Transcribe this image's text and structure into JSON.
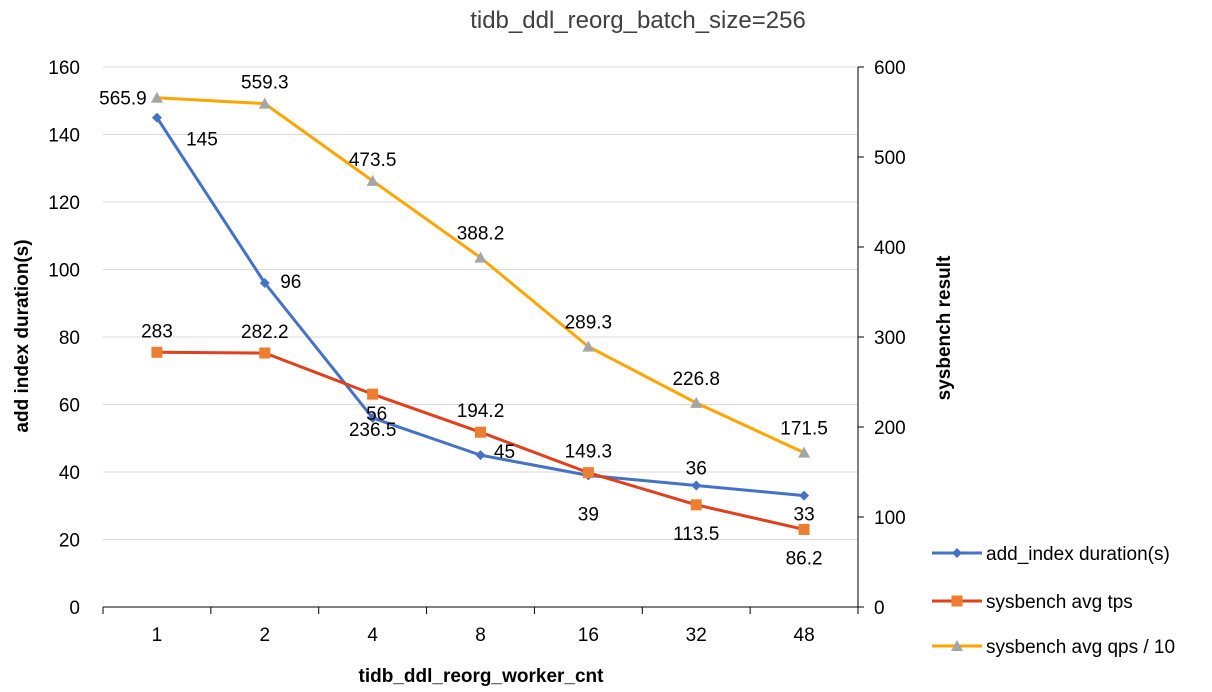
{
  "chart_data": {
    "type": "line",
    "title": "tidb_ddl_reorg_batch_size=256",
    "xlabel": "tidb_ddl_reorg_worker_cnt",
    "ylabel": "add index duration(s)",
    "y2label": "sysbench result",
    "categories": [
      "1",
      "2",
      "4",
      "8",
      "16",
      "32",
      "48"
    ],
    "ylim": [
      0,
      160
    ],
    "y_ticks": [
      "0",
      "20",
      "40",
      "60",
      "80",
      "100",
      "120",
      "140",
      "160"
    ],
    "y2lim": [
      0,
      600
    ],
    "y2_ticks": [
      "0",
      "100",
      "200",
      "300",
      "400",
      "500",
      "600"
    ],
    "grid": true,
    "legend_position": "bottom-right",
    "series": [
      {
        "name": "add_index duration(s)",
        "axis": "left",
        "color": "#4472C4",
        "marker": "diamond",
        "values": [
          145,
          96,
          56,
          45,
          39,
          36,
          33
        ],
        "labels": [
          "145",
          "96",
          "56",
          "45",
          "39",
          "36",
          "33"
        ]
      },
      {
        "name": "sysbench avg tps",
        "axis": "right",
        "color": "#ED7D31",
        "line_color": "#E0401D",
        "marker": "square",
        "values": [
          283,
          282.2,
          236.5,
          194.2,
          149.3,
          113.5,
          86.2
        ],
        "labels": [
          "283",
          "282.2",
          "236.5",
          "194.2",
          "149.3",
          "113.5",
          "86.2"
        ]
      },
      {
        "name": "sysbench avg qps / 10",
        "axis": "right",
        "color": "#FFA500",
        "marker_color": "#A5A5A5",
        "marker": "triangle",
        "values": [
          565.9,
          559.3,
          473.5,
          388.2,
          289.3,
          226.8,
          171.5
        ],
        "labels": [
          "565.9",
          "559.3",
          "473.5",
          "388.2",
          "289.3",
          "226.8",
          "171.5"
        ]
      }
    ]
  }
}
